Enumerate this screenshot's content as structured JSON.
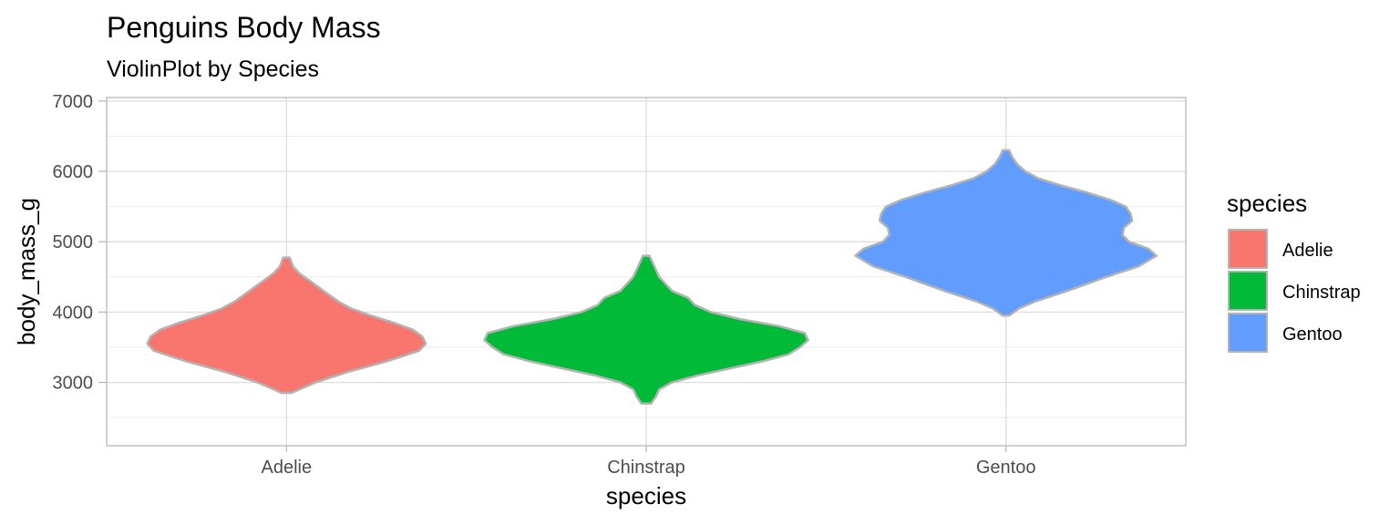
{
  "chart_data": {
    "type": "violin",
    "title": "Penguins Body Mass",
    "subtitle": "ViolinPlot by Species",
    "xlabel": "species",
    "ylabel": "body_mass_g",
    "categories": [
      "Adelie",
      "Chinstrap",
      "Gentoo"
    ],
    "ylim": [
      2100,
      7050
    ],
    "yticks": [
      3000,
      4000,
      5000,
      6000,
      7000
    ],
    "grid": true,
    "legend": {
      "title": "species",
      "position": "right"
    },
    "series": [
      {
        "name": "Adelie",
        "color": "#F8766D",
        "range": [
          2850,
          4775
        ],
        "profile": [
          [
            2850,
            0.03
          ],
          [
            3000,
            0.18
          ],
          [
            3150,
            0.38
          ],
          [
            3300,
            0.62
          ],
          [
            3450,
            0.82
          ],
          [
            3550,
            0.86
          ],
          [
            3650,
            0.84
          ],
          [
            3750,
            0.78
          ],
          [
            3850,
            0.66
          ],
          [
            3950,
            0.52
          ],
          [
            4050,
            0.4
          ],
          [
            4150,
            0.32
          ],
          [
            4250,
            0.26
          ],
          [
            4350,
            0.2
          ],
          [
            4450,
            0.14
          ],
          [
            4550,
            0.08
          ],
          [
            4650,
            0.04
          ],
          [
            4775,
            0.02
          ]
        ]
      },
      {
        "name": "Chinstrap",
        "color": "#00BA38",
        "range": [
          2700,
          4800
        ],
        "profile": [
          [
            2700,
            0.03
          ],
          [
            2800,
            0.06
          ],
          [
            2900,
            0.08
          ],
          [
            3000,
            0.16
          ],
          [
            3100,
            0.32
          ],
          [
            3200,
            0.52
          ],
          [
            3300,
            0.72
          ],
          [
            3400,
            0.88
          ],
          [
            3500,
            0.95
          ],
          [
            3600,
            1.0
          ],
          [
            3700,
            0.98
          ],
          [
            3800,
            0.82
          ],
          [
            3900,
            0.58
          ],
          [
            4000,
            0.4
          ],
          [
            4100,
            0.3
          ],
          [
            4200,
            0.26
          ],
          [
            4300,
            0.16
          ],
          [
            4400,
            0.12
          ],
          [
            4500,
            0.08
          ],
          [
            4600,
            0.06
          ],
          [
            4700,
            0.04
          ],
          [
            4800,
            0.02
          ]
        ]
      },
      {
        "name": "Gentoo",
        "color": "#619CFF",
        "range": [
          3950,
          6300
        ],
        "profile": [
          [
            3950,
            0.02
          ],
          [
            4050,
            0.08
          ],
          [
            4150,
            0.18
          ],
          [
            4300,
            0.38
          ],
          [
            4500,
            0.62
          ],
          [
            4650,
            0.82
          ],
          [
            4800,
            0.93
          ],
          [
            4900,
            0.88
          ],
          [
            5000,
            0.76
          ],
          [
            5100,
            0.72
          ],
          [
            5200,
            0.73
          ],
          [
            5300,
            0.78
          ],
          [
            5400,
            0.77
          ],
          [
            5500,
            0.74
          ],
          [
            5600,
            0.64
          ],
          [
            5700,
            0.5
          ],
          [
            5800,
            0.34
          ],
          [
            5900,
            0.2
          ],
          [
            6000,
            0.12
          ],
          [
            6100,
            0.07
          ],
          [
            6200,
            0.04
          ],
          [
            6300,
            0.02
          ]
        ]
      }
    ]
  }
}
